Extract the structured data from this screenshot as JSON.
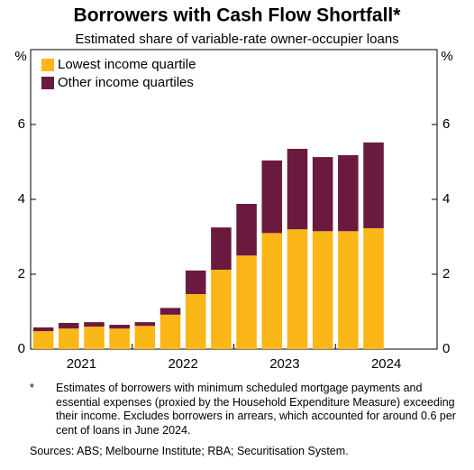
{
  "chart_data": {
    "type": "stacked_bar",
    "title": "Borrowers with Cash Flow Shortfall*",
    "subtitle": "Estimated share of variable-rate owner-occupier loans",
    "y_unit": "%",
    "categories": [
      null,
      null,
      null,
      null,
      null,
      null,
      null,
      null,
      null,
      null,
      null,
      null,
      null,
      null
    ],
    "year_labels": [
      "2021",
      "2022",
      "2023",
      "2024"
    ],
    "series": [
      {
        "name": "Lowest income quartile",
        "color": "#fbb617",
        "values": [
          0.48,
          0.55,
          0.6,
          0.55,
          0.62,
          0.92,
          1.47,
          2.12,
          2.5,
          3.1,
          3.2,
          3.15,
          3.15,
          3.23
        ]
      },
      {
        "name": "Other income quartiles",
        "color": "#6b1a3f",
        "values": [
          0.1,
          0.15,
          0.12,
          0.1,
          0.1,
          0.18,
          0.63,
          1.13,
          1.38,
          1.94,
          2.15,
          1.98,
          2.03,
          2.29
        ]
      }
    ],
    "ylim": [
      0,
      8
    ],
    "yticks": [
      0,
      2,
      4,
      6
    ],
    "grid": false,
    "footnote_marker": "*",
    "footnote": "Estimates of borrowers with minimum scheduled mortgage payments and essential expenses (proxied by the Household Expenditure Measure) exceeding their income. Excludes borrowers in arrears, which accounted for around 0.6 per cent of loans in June 2024.",
    "sources": "Sources: ABS; Melbourne Institute; RBA; Securitisation System."
  }
}
